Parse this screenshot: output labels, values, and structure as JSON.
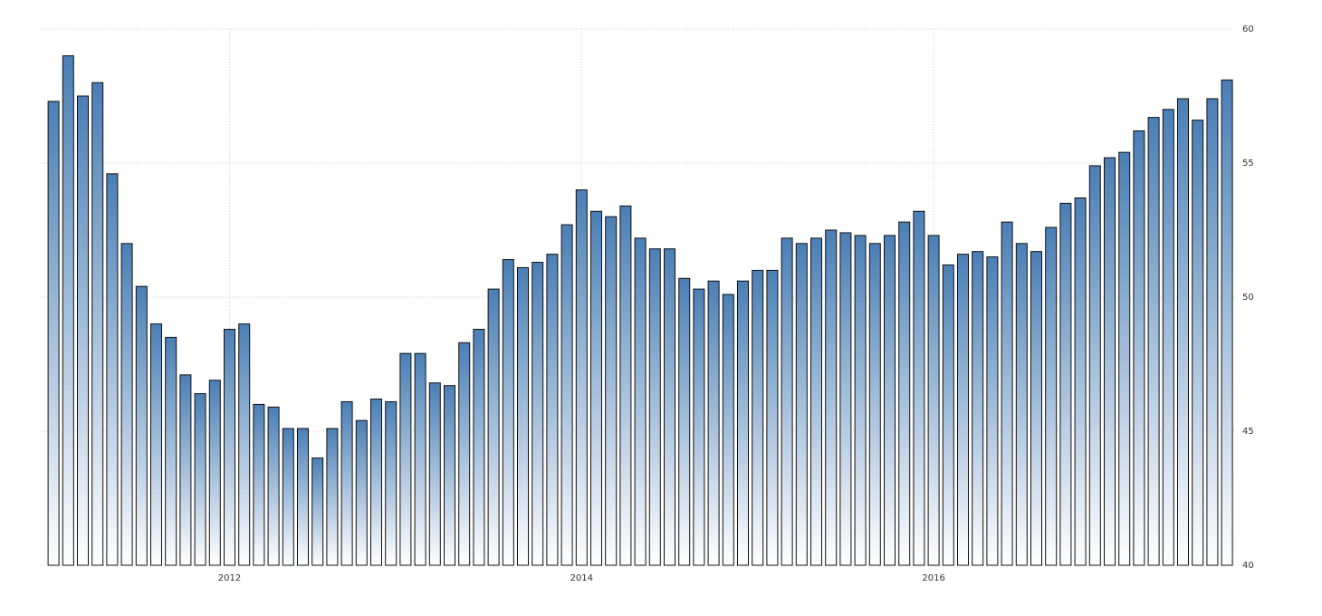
{
  "chart_data": {
    "type": "bar",
    "categories": [
      null,
      null,
      null,
      null,
      null,
      null,
      null,
      null,
      null,
      null,
      null,
      null,
      "2012",
      null,
      null,
      null,
      null,
      null,
      null,
      null,
      null,
      null,
      null,
      null,
      null,
      null,
      null,
      null,
      null,
      null,
      null,
      null,
      null,
      null,
      null,
      null,
      "2014",
      null,
      null,
      null,
      null,
      null,
      null,
      null,
      null,
      null,
      null,
      null,
      null,
      null,
      null,
      null,
      null,
      null,
      null,
      null,
      null,
      null,
      null,
      null,
      "2016",
      null,
      null,
      null,
      null,
      null,
      null,
      null,
      null,
      null,
      null,
      null,
      null,
      null,
      null,
      null,
      null,
      null,
      null,
      null,
      null
    ],
    "values": [
      57.3,
      59.0,
      57.5,
      58.0,
      54.6,
      52.0,
      50.4,
      49.0,
      48.5,
      47.1,
      46.4,
      46.9,
      48.8,
      49.0,
      46.0,
      45.9,
      45.1,
      45.1,
      44.0,
      45.1,
      46.1,
      45.4,
      46.2,
      46.1,
      47.9,
      47.9,
      46.8,
      46.7,
      48.3,
      48.8,
      50.3,
      51.4,
      51.1,
      51.3,
      51.6,
      52.7,
      54.0,
      53.2,
      53.0,
      53.4,
      52.2,
      51.8,
      51.8,
      50.7,
      50.3,
      50.6,
      50.1,
      50.6,
      51.0,
      51.0,
      52.2,
      52.0,
      52.2,
      52.5,
      52.4,
      52.3,
      52.0,
      52.3,
      52.8,
      53.2,
      52.3,
      51.2,
      51.6,
      51.7,
      51.5,
      52.8,
      52.0,
      51.7,
      52.6,
      53.5,
      53.7,
      54.9,
      55.2,
      55.4,
      56.2,
      56.7,
      57.0,
      57.4,
      56.6,
      57.4,
      58.1
    ],
    "color": "#4a7fb5",
    "ylim": [
      40,
      60
    ],
    "yticks": [
      40,
      45,
      50,
      55,
      60
    ],
    "grid": true
  }
}
